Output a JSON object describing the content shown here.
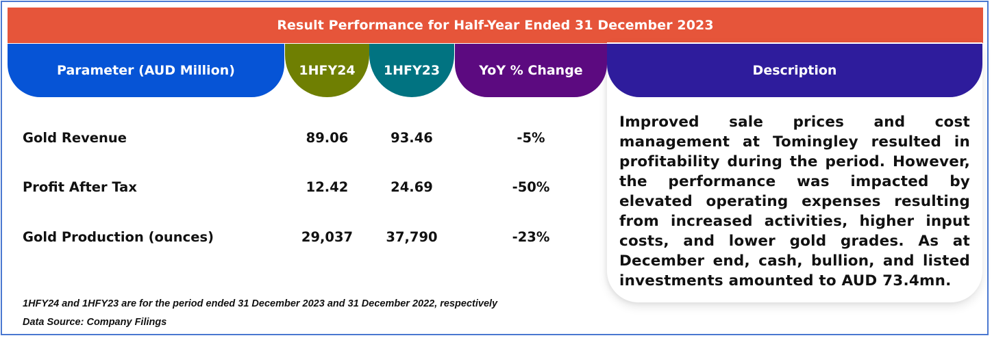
{
  "title": "Result Performance for Half-Year Ended 31 December 2023",
  "colors": {
    "title_bar": "#e6553a",
    "parameter_header": "#0654d6",
    "hfy24_header": "#6f7f02",
    "hfy23_header": "#017381",
    "yoy_header": "#5c0a80",
    "description_header": "#2e1c9c",
    "frame_border": "#4a78d0"
  },
  "headers": {
    "parameter": "Parameter (AUD Million)",
    "hfy24": "1HFY24",
    "hfy23": "1HFY23",
    "yoy": "YoY % Change",
    "description": "Description"
  },
  "rows": [
    {
      "parameter": "Gold Revenue",
      "hfy24": "89.06",
      "hfy23": "93.46",
      "yoy": "-5%"
    },
    {
      "parameter": "Profit After Tax",
      "hfy24": "12.42",
      "hfy23": "24.69",
      "yoy": "-50%"
    },
    {
      "parameter": "Gold Production (ounces)",
      "hfy24": "29,037",
      "hfy23": "37,790",
      "yoy": "-23%"
    }
  ],
  "description": "Improved sale prices and cost management at Tomingley resulted in profitability during the period. However, the performance was impacted by elevated operating expenses resulting from increased activities, higher input costs, and lower gold grades. As at December end, cash, bullion, and listed investments amounted to AUD 73.4mn.",
  "footnotes": {
    "period_note": "1HFY24 and 1HFY23 are for the period ended 31 December 2023 and 31 December 2022, respectively",
    "source": "Data Source: Company Filings"
  }
}
